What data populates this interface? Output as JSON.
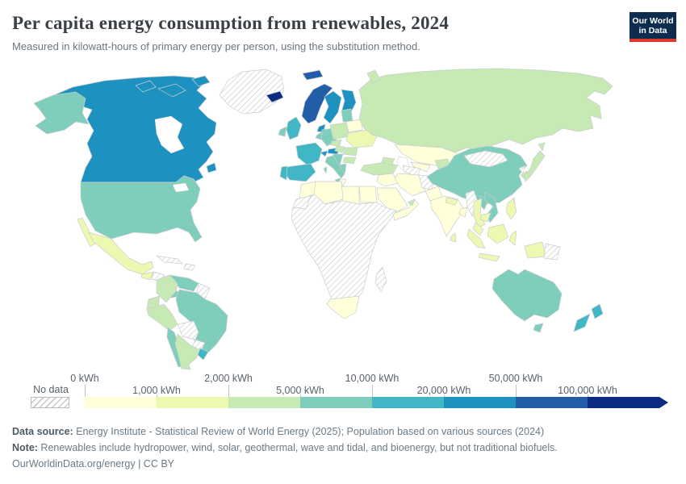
{
  "header": {
    "title": "Per capita energy consumption from renewables, 2024",
    "subtitle": "Measured in kilowatt-hours of primary energy per person, using the substitution method.",
    "logo": {
      "line1": "Our World",
      "line2": "in Data",
      "navy": "#0d2c4e",
      "red": "#dd392d"
    }
  },
  "legend": {
    "no_data_label": "No data",
    "segment_colors": [
      "#ffffd9",
      "#edf8b1",
      "#c7e9b4",
      "#7fcdbb",
      "#41b6c4",
      "#1d91c0",
      "#225ea8",
      "#0c2c84"
    ],
    "ticks": [
      {
        "label": "0 kWh",
        "row": "top"
      },
      {
        "label": "1,000 kWh",
        "row": "bottom"
      },
      {
        "label": "2,000 kWh",
        "row": "top"
      },
      {
        "label": "5,000 kWh",
        "row": "bottom"
      },
      {
        "label": "10,000 kWh",
        "row": "top"
      },
      {
        "label": "20,000 kWh",
        "row": "bottom"
      },
      {
        "label": "50,000 kWh",
        "row": "top"
      },
      {
        "label": "100,000 kWh",
        "row": "bottom"
      }
    ]
  },
  "chart_data": {
    "type": "choropleth",
    "title": "Per capita energy consumption from renewables, 2024",
    "unit": "kWh per person",
    "bucket_labels": [
      "No data",
      "0–1,000 kWh",
      "1,000–2,000 kWh",
      "2,000–5,000 kWh",
      "5,000–10,000 kWh",
      "10,000–20,000 kWh",
      "20,000–50,000 kWh",
      "50,000–100,000 kWh",
      "100,000+ kWh"
    ],
    "regions": [
      {
        "id": "greenland",
        "name": "Greenland",
        "bucket": 0
      },
      {
        "id": "canada",
        "name": "Canada",
        "bucket": 6
      },
      {
        "id": "usa",
        "name": "United States",
        "bucket": 4
      },
      {
        "id": "mexico",
        "name": "Mexico",
        "bucket": 2
      },
      {
        "id": "guatemala",
        "name": "Guatemala",
        "bucket": 2
      },
      {
        "id": "honduras",
        "name": "Honduras",
        "bucket": 0
      },
      {
        "id": "nicaragua",
        "name": "Nicaragua",
        "bucket": 0
      },
      {
        "id": "costa-rica-panama",
        "name": "Costa Rica & Panama",
        "bucket": 4
      },
      {
        "id": "cuba",
        "name": "Cuba",
        "bucket": 0
      },
      {
        "id": "hispaniola",
        "name": "Haiti & Dominican Republic",
        "bucket": 0
      },
      {
        "id": "colombia",
        "name": "Colombia",
        "bucket": 3
      },
      {
        "id": "venezuela",
        "name": "Venezuela",
        "bucket": 4
      },
      {
        "id": "guyanas",
        "name": "Guyana & Suriname",
        "bucket": 0
      },
      {
        "id": "ecuador",
        "name": "Ecuador",
        "bucket": 3
      },
      {
        "id": "peru",
        "name": "Peru",
        "bucket": 3
      },
      {
        "id": "brazil",
        "name": "Brazil",
        "bucket": 4
      },
      {
        "id": "bolivia",
        "name": "Bolivia",
        "bucket": 0
      },
      {
        "id": "paraguay",
        "name": "Paraguay",
        "bucket": 0
      },
      {
        "id": "chile",
        "name": "Chile",
        "bucket": 4
      },
      {
        "id": "argentina",
        "name": "Argentina",
        "bucket": 3
      },
      {
        "id": "uruguay",
        "name": "Uruguay",
        "bucket": 5
      },
      {
        "id": "iceland",
        "name": "Iceland",
        "bucket": 8
      },
      {
        "id": "norway",
        "name": "Norway",
        "bucket": 7
      },
      {
        "id": "sweden",
        "name": "Sweden",
        "bucket": 6
      },
      {
        "id": "finland",
        "name": "Finland",
        "bucket": 6
      },
      {
        "id": "denmark",
        "name": "Denmark",
        "bucket": 6
      },
      {
        "id": "united-kingdom",
        "name": "United Kingdom",
        "bucket": 5
      },
      {
        "id": "ireland",
        "name": "Ireland",
        "bucket": 4
      },
      {
        "id": "france",
        "name": "France",
        "bucket": 5
      },
      {
        "id": "spain",
        "name": "Spain",
        "bucket": 5
      },
      {
        "id": "portugal",
        "name": "Portugal",
        "bucket": 5
      },
      {
        "id": "germany",
        "name": "Germany",
        "bucket": 4
      },
      {
        "id": "benelux",
        "name": "Belgium & Netherlands",
        "bucket": 4
      },
      {
        "id": "switzerland",
        "name": "Switzerland",
        "bucket": 6
      },
      {
        "id": "austria",
        "name": "Austria",
        "bucket": 6
      },
      {
        "id": "czechia",
        "name": "Czechia",
        "bucket": 3
      },
      {
        "id": "poland",
        "name": "Poland",
        "bucket": 3
      },
      {
        "id": "baltics",
        "name": "Baltic states",
        "bucket": 4
      },
      {
        "id": "belarus",
        "name": "Belarus",
        "bucket": 1
      },
      {
        "id": "ukraine",
        "name": "Ukraine",
        "bucket": 2
      },
      {
        "id": "romania",
        "name": "Romania",
        "bucket": 3
      },
      {
        "id": "hungary",
        "name": "Hungary",
        "bucket": 3
      },
      {
        "id": "balkans",
        "name": "Western Balkans",
        "bucket": 4
      },
      {
        "id": "greece",
        "name": "Greece",
        "bucket": 4
      },
      {
        "id": "bulgaria",
        "name": "Bulgaria",
        "bucket": 3
      },
      {
        "id": "italy",
        "name": "Italy",
        "bucket": 4
      },
      {
        "id": "russia",
        "name": "Russia",
        "bucket": 3
      },
      {
        "id": "turkey",
        "name": "Turkey",
        "bucket": 3
      },
      {
        "id": "caucasus",
        "name": "Caucasus",
        "bucket": 3
      },
      {
        "id": "kazakhstan",
        "name": "Kazakhstan",
        "bucket": 1
      },
      {
        "id": "uzbekistan",
        "name": "Uzbekistan",
        "bucket": 1
      },
      {
        "id": "turkmenistan",
        "name": "Turkmenistan",
        "bucket": 0
      },
      {
        "id": "kyrgyzstan",
        "name": "Kyrgyzstan & Tajikistan",
        "bucket": 3
      },
      {
        "id": "iraq",
        "name": "Iraq & Syria",
        "bucket": 1
      },
      {
        "id": "iran",
        "name": "Iran",
        "bucket": 1
      },
      {
        "id": "afghanistan",
        "name": "Afghanistan",
        "bucket": 0
      },
      {
        "id": "pakistan",
        "name": "Pakistan",
        "bucket": 1
      },
      {
        "id": "saudi-arabia",
        "name": "Saudi Arabia",
        "bucket": 1
      },
      {
        "id": "yemen-oman",
        "name": "Yemen & Oman",
        "bucket": 1
      },
      {
        "id": "uae",
        "name": "United Arab Emirates",
        "bucket": 3
      },
      {
        "id": "egypt",
        "name": "Egypt",
        "bucket": 1
      },
      {
        "id": "libya",
        "name": "Libya",
        "bucket": 1
      },
      {
        "id": "tunisia",
        "name": "Tunisia",
        "bucket": 1
      },
      {
        "id": "algeria",
        "name": "Algeria",
        "bucket": 1
      },
      {
        "id": "morocco",
        "name": "Morocco",
        "bucket": 1
      },
      {
        "id": "western-sahara",
        "name": "Western Sahara",
        "bucket": 0
      },
      {
        "id": "sub-saharan-africa",
        "name": "Sub-Saharan Africa",
        "bucket": 0
      },
      {
        "id": "south-africa",
        "name": "South Africa",
        "bucket": 1
      },
      {
        "id": "madagascar",
        "name": "Madagascar",
        "bucket": 0
      },
      {
        "id": "india",
        "name": "India",
        "bucket": 1
      },
      {
        "id": "nepal",
        "name": "Nepal",
        "bucket": 2
      },
      {
        "id": "bangladesh",
        "name": "Bangladesh",
        "bucket": 1
      },
      {
        "id": "sri-lanka",
        "name": "Sri Lanka",
        "bucket": 2
      },
      {
        "id": "china",
        "name": "China",
        "bucket": 4
      },
      {
        "id": "mongolia",
        "name": "Mongolia",
        "bucket": 0
      },
      {
        "id": "north-korea",
        "name": "North Korea",
        "bucket": 0
      },
      {
        "id": "south-korea",
        "name": "South Korea",
        "bucket": 3
      },
      {
        "id": "japan",
        "name": "Japan",
        "bucket": 3
      },
      {
        "id": "taiwan",
        "name": "Taiwan",
        "bucket": 3
      },
      {
        "id": "myanmar",
        "name": "Myanmar",
        "bucket": 0
      },
      {
        "id": "thailand",
        "name": "Thailand",
        "bucket": 2
      },
      {
        "id": "laos",
        "name": "Laos",
        "bucket": 4
      },
      {
        "id": "vietnam",
        "name": "Vietnam",
        "bucket": 4
      },
      {
        "id": "cambodia",
        "name": "Cambodia",
        "bucket": 2
      },
      {
        "id": "malaysia",
        "name": "Malaysia",
        "bucket": 2
      },
      {
        "id": "indonesia",
        "name": "Indonesia",
        "bucket": 2
      },
      {
        "id": "philippines",
        "name": "Philippines",
        "bucket": 2
      },
      {
        "id": "papua-new-guinea",
        "name": "Papua New Guinea",
        "bucket": 0
      },
      {
        "id": "australia",
        "name": "Australia",
        "bucket": 4
      },
      {
        "id": "new-zealand",
        "name": "New Zealand",
        "bucket": 5
      }
    ]
  },
  "footer": {
    "datasource_label": "Data source:",
    "datasource_text": " Energy Institute - Statistical Review of World Energy (2025); Population based on various sources (2024)",
    "note_label": "Note:",
    "note_text": " Renewables include hydropower, wind, solar, geothermal, wave and tidal, and bioenergy, but not traditional biofuels.",
    "citation": "OurWorldinData.org/energy | CC BY"
  }
}
